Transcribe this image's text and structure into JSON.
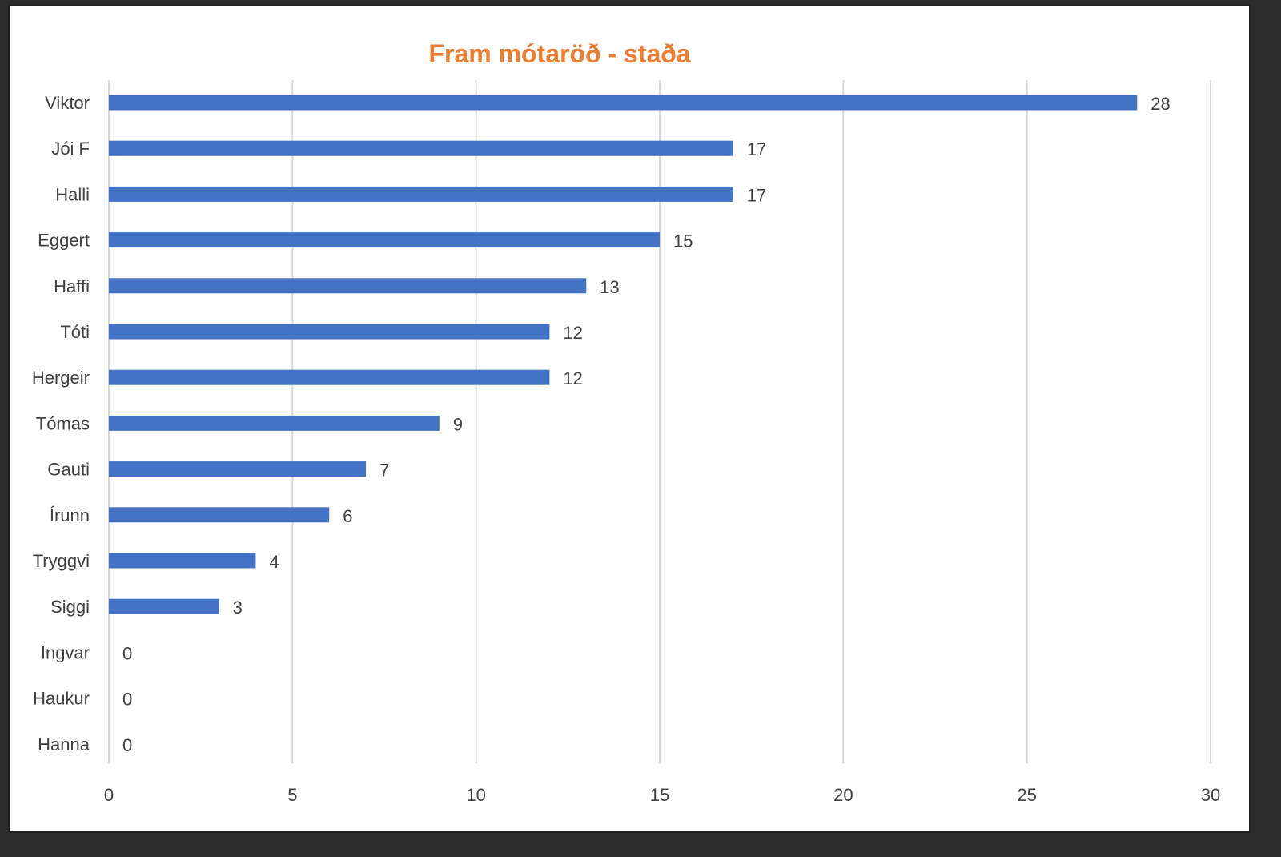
{
  "chart_data": {
    "type": "bar",
    "orientation": "horizontal",
    "title": "Fram mótaröð - staða",
    "xlabel": "",
    "ylabel": "",
    "categories": [
      "Viktor",
      "Jói F",
      "Halli",
      "Eggert",
      "Haffi",
      "Tóti",
      "Hergeir",
      "Tómas",
      "Gauti",
      "Írunn",
      "Tryggvi",
      "Siggi",
      "Ingvar",
      "Haukur",
      "Hanna"
    ],
    "values": [
      28,
      17,
      17,
      15,
      13,
      12,
      12,
      9,
      7,
      6,
      4,
      3,
      0,
      0,
      0
    ],
    "xlim": [
      0,
      30
    ],
    "xticks": [
      "0",
      "5",
      "10",
      "15",
      "20",
      "25",
      "30"
    ],
    "grid": true,
    "data_labels": true,
    "legend": "none",
    "colors": {
      "bar": "#4472C4",
      "title": "#ED7D31",
      "grid": "#D9D9D9",
      "text": "#404040",
      "background": "#FFFFFF"
    }
  }
}
